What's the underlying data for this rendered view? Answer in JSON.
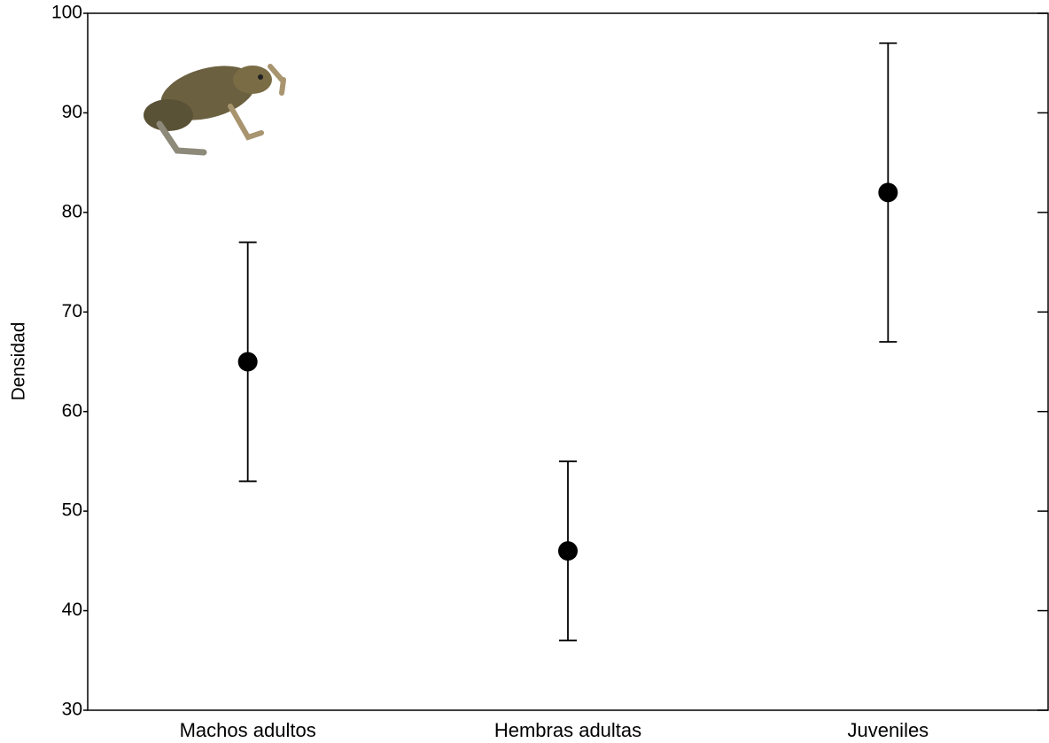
{
  "chart_data": {
    "type": "errorbar",
    "ylabel": "Densidad",
    "categories": [
      "Machos adultos",
      "Hembras adultas",
      "Juveniles"
    ],
    "values": [
      65,
      46,
      82
    ],
    "errors": [
      12,
      9,
      15
    ],
    "color": "#000000",
    "ylim": [
      30,
      100
    ],
    "yticks": [
      30,
      40,
      50,
      60,
      70,
      80,
      90,
      100
    ],
    "grid": false
  }
}
